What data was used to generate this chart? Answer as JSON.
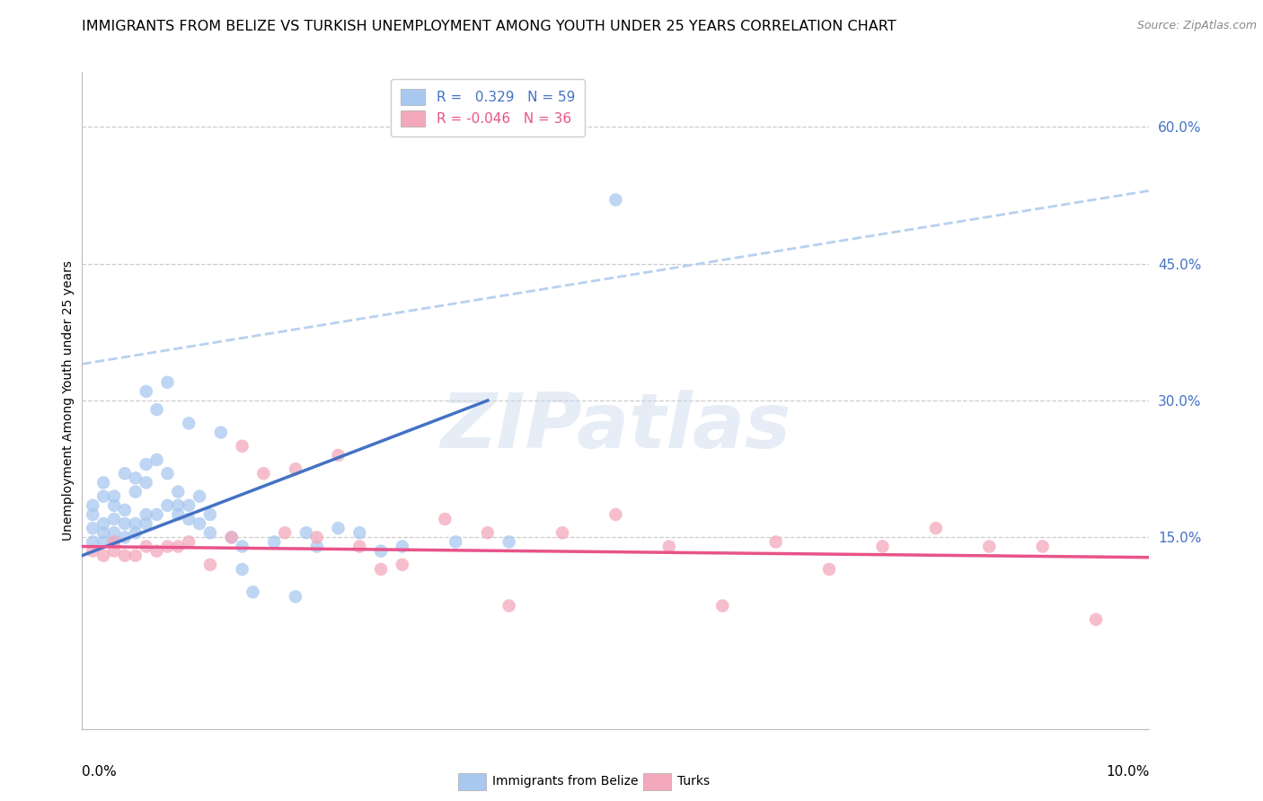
{
  "title": "IMMIGRANTS FROM BELIZE VS TURKISH UNEMPLOYMENT AMONG YOUTH UNDER 25 YEARS CORRELATION CHART",
  "source": "Source: ZipAtlas.com",
  "ylabel": "Unemployment Among Youth under 25 years",
  "y_axis_ticks_right": [
    0.6,
    0.45,
    0.3,
    0.15
  ],
  "xlim": [
    0.0,
    0.1
  ],
  "ylim": [
    -0.06,
    0.66
  ],
  "blue_R": 0.329,
  "blue_N": 59,
  "pink_R": -0.046,
  "pink_N": 36,
  "blue_color": "#A8C8F0",
  "pink_color": "#F4A8BB",
  "blue_line_color": "#4472C4",
  "pink_line_color": "#E8538A",
  "dashed_line_color": "#B8D0F0",
  "watermark": "ZIPatlas",
  "legend_label_blue": "Immigrants from Belize",
  "legend_label_pink": "Turks",
  "blue_scatter_x": [
    0.001,
    0.001,
    0.001,
    0.001,
    0.002,
    0.002,
    0.002,
    0.002,
    0.002,
    0.003,
    0.003,
    0.003,
    0.003,
    0.003,
    0.004,
    0.004,
    0.004,
    0.004,
    0.005,
    0.005,
    0.005,
    0.005,
    0.006,
    0.006,
    0.006,
    0.006,
    0.006,
    0.007,
    0.007,
    0.007,
    0.008,
    0.008,
    0.008,
    0.009,
    0.009,
    0.009,
    0.01,
    0.01,
    0.01,
    0.011,
    0.011,
    0.012,
    0.012,
    0.013,
    0.014,
    0.015,
    0.015,
    0.016,
    0.018,
    0.02,
    0.021,
    0.022,
    0.024,
    0.026,
    0.028,
    0.03,
    0.035,
    0.04,
    0.05
  ],
  "blue_scatter_y": [
    0.145,
    0.16,
    0.175,
    0.185,
    0.145,
    0.155,
    0.165,
    0.195,
    0.21,
    0.145,
    0.155,
    0.17,
    0.185,
    0.195,
    0.15,
    0.165,
    0.18,
    0.22,
    0.155,
    0.165,
    0.2,
    0.215,
    0.165,
    0.175,
    0.21,
    0.23,
    0.31,
    0.175,
    0.235,
    0.29,
    0.185,
    0.22,
    0.32,
    0.175,
    0.185,
    0.2,
    0.17,
    0.185,
    0.275,
    0.165,
    0.195,
    0.155,
    0.175,
    0.265,
    0.15,
    0.115,
    0.14,
    0.09,
    0.145,
    0.085,
    0.155,
    0.14,
    0.16,
    0.155,
    0.135,
    0.14,
    0.145,
    0.145,
    0.52
  ],
  "pink_scatter_x": [
    0.001,
    0.002,
    0.003,
    0.003,
    0.004,
    0.005,
    0.006,
    0.007,
    0.008,
    0.009,
    0.01,
    0.012,
    0.014,
    0.015,
    0.017,
    0.019,
    0.02,
    0.022,
    0.024,
    0.026,
    0.028,
    0.03,
    0.034,
    0.038,
    0.04,
    0.045,
    0.05,
    0.055,
    0.06,
    0.065,
    0.07,
    0.075,
    0.08,
    0.085,
    0.09,
    0.095
  ],
  "pink_scatter_y": [
    0.135,
    0.13,
    0.135,
    0.145,
    0.13,
    0.13,
    0.14,
    0.135,
    0.14,
    0.14,
    0.145,
    0.12,
    0.15,
    0.25,
    0.22,
    0.155,
    0.225,
    0.15,
    0.24,
    0.14,
    0.115,
    0.12,
    0.17,
    0.155,
    0.075,
    0.155,
    0.175,
    0.14,
    0.075,
    0.145,
    0.115,
    0.14,
    0.16,
    0.14,
    0.14,
    0.06
  ],
  "blue_line_x0": 0.0,
  "blue_line_x1": 0.038,
  "blue_line_y0": 0.13,
  "blue_line_y1": 0.3,
  "pink_line_x0": 0.0,
  "pink_line_x1": 0.1,
  "pink_line_y0": 0.14,
  "pink_line_y1": 0.128,
  "dashed_line_x0": 0.0,
  "dashed_line_x1": 0.1,
  "dashed_line_y0": 0.34,
  "dashed_line_y1": 0.53,
  "grid_color": "#CCCCCC",
  "background_color": "#FFFFFF",
  "title_fontsize": 11.5,
  "axis_label_fontsize": 10,
  "tick_label_fontsize": 11,
  "legend_fontsize": 11
}
